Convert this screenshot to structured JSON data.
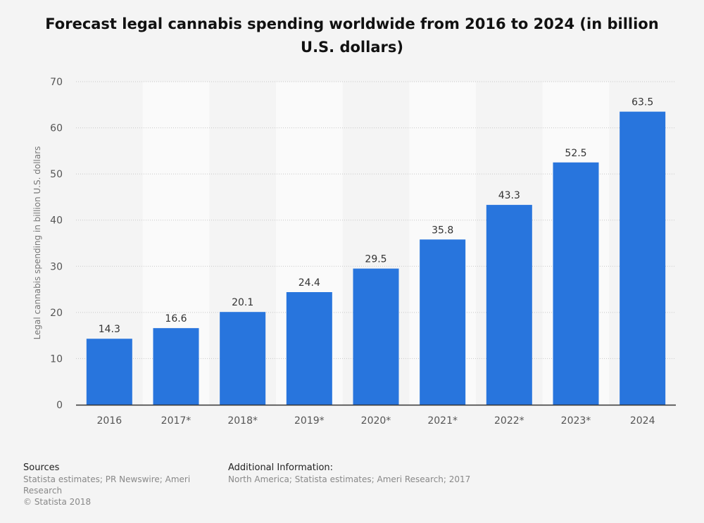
{
  "chart_data": {
    "type": "bar",
    "title": "Forecast legal cannabis spending worldwide from 2016 to 2024 (in billion U.S. dollars)",
    "xlabel": "",
    "ylabel": "Legal cannabis spending in billion U.S. dollars",
    "categories": [
      "2016",
      "2017*",
      "2018*",
      "2019*",
      "2020*",
      "2021*",
      "2022*",
      "2023*",
      "2024"
    ],
    "values": [
      14.3,
      16.6,
      20.1,
      24.4,
      29.5,
      35.8,
      43.3,
      52.5,
      63.5
    ],
    "ylim": [
      0,
      70
    ],
    "yticks": [
      0,
      10,
      20,
      30,
      40,
      50,
      60,
      70
    ],
    "grid": true,
    "bar_color": "#2875dd"
  },
  "footer": {
    "sources_label": "Sources",
    "sources_text": "Statista estimates; PR Newswire; Ameri Research",
    "copyright": "© Statista 2018",
    "additional_label": "Additional Information:",
    "additional_text": "North America; Statista estimates; Ameri Research; 2017"
  }
}
